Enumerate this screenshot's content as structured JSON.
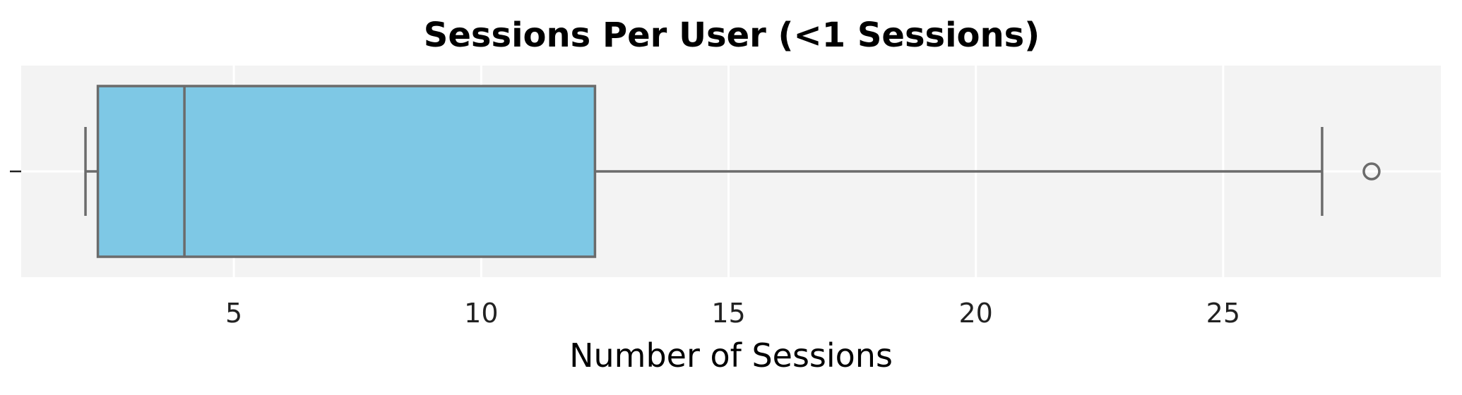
{
  "chart_data": {
    "type": "box",
    "title": "Sessions Per User (<1 Sessions)",
    "xlabel": "Number of Sessions",
    "ylabel": "",
    "orientation": "horizontal",
    "xlim": [
      0.7,
      29.4
    ],
    "x_ticks": [
      5,
      10,
      15,
      20,
      25
    ],
    "x_tick_labels": [
      "5",
      "10",
      "15",
      "20",
      "25"
    ],
    "grid": true,
    "box": {
      "whisker_low": 2,
      "q1": 2.25,
      "median": 4,
      "q3": 12.3,
      "whisker_high": 27,
      "outliers": [
        28
      ]
    },
    "colors": {
      "box_fill": "#7ec8e5",
      "box_edge": "#6b6b6b",
      "plot_background": "#f3f3f3",
      "grid": "#ffffff"
    }
  }
}
